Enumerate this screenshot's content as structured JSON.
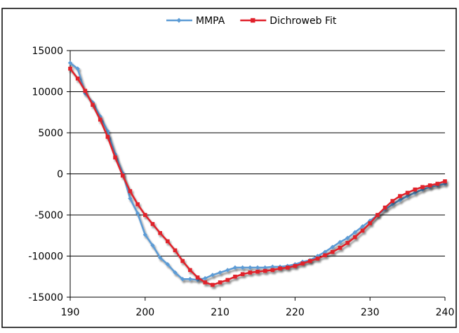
{
  "chart_data": {
    "type": "line",
    "title": "",
    "xlabel": "",
    "ylabel": "",
    "xlim": [
      190,
      240
    ],
    "ylim": [
      -15000,
      15000
    ],
    "x_ticks": [
      190,
      200,
      210,
      220,
      230,
      240
    ],
    "y_ticks": [
      15000,
      10000,
      5000,
      0,
      -5000,
      -10000,
      -15000
    ],
    "grid": "horizontal major lines",
    "legend_position": "top",
    "series": [
      {
        "name": "MMPA",
        "color": "#5B9BD5",
        "marker": "diamond",
        "x": [
          190,
          191,
          192,
          193,
          194,
          195,
          196,
          197,
          198,
          199,
          200,
          201,
          202,
          203,
          204,
          205,
          206,
          207,
          208,
          209,
          210,
          211,
          212,
          213,
          214,
          215,
          216,
          217,
          218,
          219,
          220,
          221,
          222,
          223,
          224,
          225,
          226,
          227,
          228,
          229,
          230,
          231,
          232,
          233,
          234,
          235,
          236,
          237,
          238,
          239,
          240
        ],
        "y": [
          13500,
          12800,
          9800,
          8700,
          7000,
          5200,
          2400,
          100,
          -3000,
          -4800,
          -7400,
          -8700,
          -10200,
          -11000,
          -12000,
          -12800,
          -12800,
          -12900,
          -12700,
          -12300,
          -12000,
          -11700,
          -11400,
          -11400,
          -11400,
          -11400,
          -11400,
          -11300,
          -11300,
          -11200,
          -11000,
          -10700,
          -10500,
          -10000,
          -9500,
          -8900,
          -8300,
          -7800,
          -7100,
          -6400,
          -5700,
          -5000,
          -4300,
          -3700,
          -3200,
          -2700,
          -2300,
          -1900,
          -1600,
          -1400,
          -1200
        ]
      },
      {
        "name": "Dichroweb Fit",
        "color": "#E0202A",
        "marker": "square",
        "x": [
          190,
          191,
          192,
          193,
          194,
          195,
          196,
          197,
          198,
          199,
          200,
          201,
          202,
          203,
          204,
          205,
          206,
          207,
          208,
          209,
          210,
          211,
          212,
          213,
          214,
          215,
          216,
          217,
          218,
          219,
          220,
          221,
          222,
          223,
          224,
          225,
          226,
          227,
          228,
          229,
          230,
          231,
          232,
          233,
          234,
          235,
          236,
          237,
          238,
          239,
          240
        ],
        "y": [
          12800,
          11600,
          10100,
          8400,
          6600,
          4500,
          2000,
          -200,
          -2100,
          -3700,
          -5000,
          -6100,
          -7200,
          -8200,
          -9300,
          -10600,
          -11700,
          -12600,
          -13200,
          -13500,
          -13200,
          -12900,
          -12500,
          -12200,
          -12000,
          -11900,
          -11800,
          -11700,
          -11500,
          -11400,
          -11200,
          -10900,
          -10600,
          -10300,
          -9900,
          -9500,
          -9000,
          -8400,
          -7700,
          -6900,
          -6000,
          -5000,
          -4100,
          -3300,
          -2700,
          -2300,
          -1900,
          -1600,
          -1400,
          -1200,
          -900
        ]
      }
    ]
  }
}
